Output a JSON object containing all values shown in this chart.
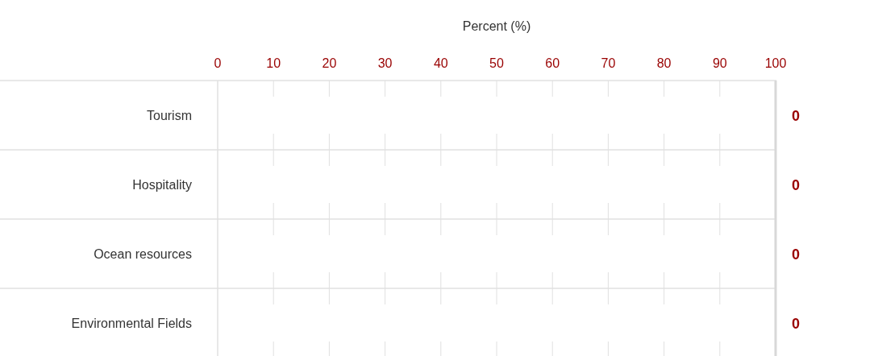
{
  "chart_data": {
    "type": "bar",
    "orientation": "horizontal",
    "xlabel": "Percent (%)",
    "categories": [
      "Tourism",
      "Hospitality",
      "Ocean resources",
      "Environmental Fields"
    ],
    "values": [
      0,
      0,
      0,
      0
    ],
    "color": "#990000",
    "xlim": [
      0,
      100
    ],
    "xticks": [
      0,
      10,
      20,
      30,
      40,
      50,
      60,
      70,
      80,
      90,
      100
    ],
    "data_labels": true,
    "grid": "x"
  }
}
